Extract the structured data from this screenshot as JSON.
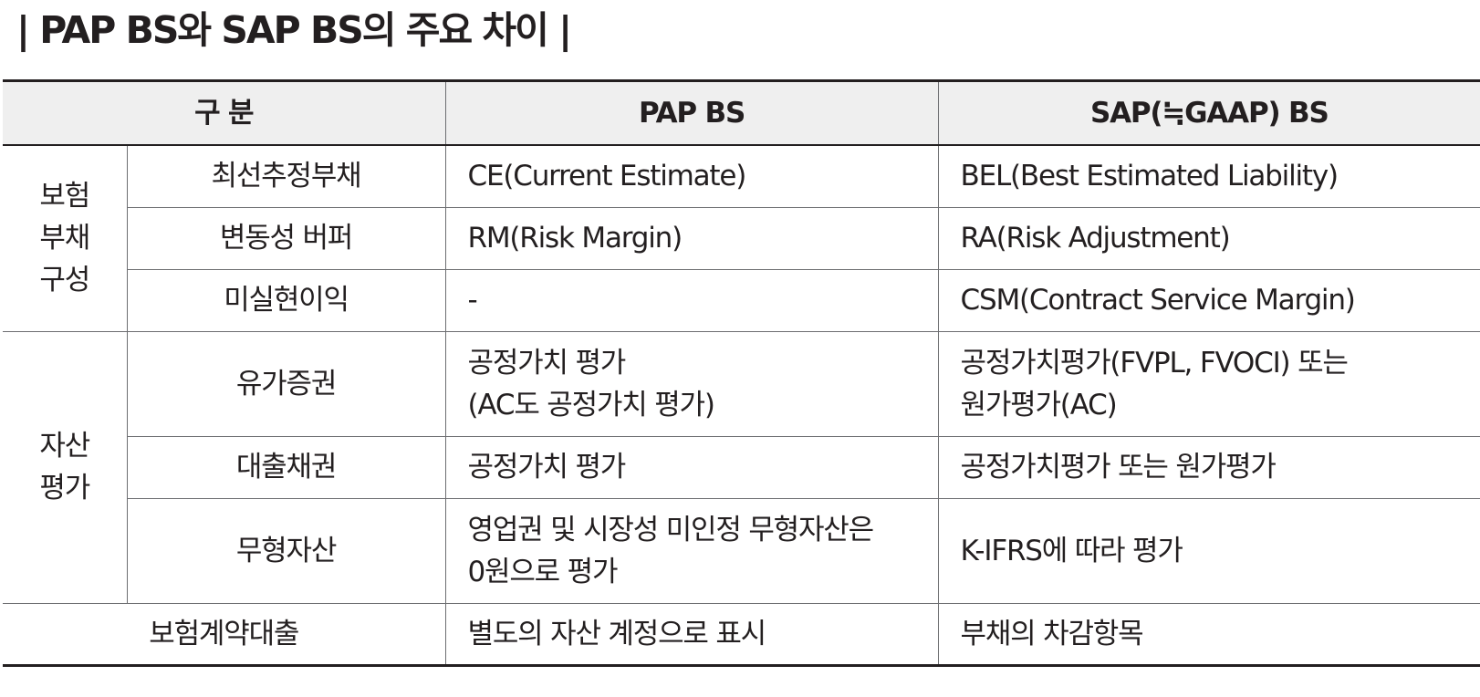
{
  "title": "| PAP BS와 SAP BS의 주요 차이 |",
  "header": {
    "category": "구 분",
    "pap": "PAP BS",
    "sap": "SAP(≒GAAP) BS"
  },
  "groups": {
    "liability": [
      "보험",
      "부채",
      "구성"
    ],
    "asset": [
      "자산",
      "평가"
    ]
  },
  "rows": [
    {
      "label": "최선추정부채",
      "pap": [
        "CE(Current Estimate)"
      ],
      "sap": [
        "BEL(Best Estimated Liability)"
      ]
    },
    {
      "label": "변동성 버퍼",
      "pap": [
        "RM(Risk Margin)"
      ],
      "sap": [
        "RA(Risk Adjustment)"
      ]
    },
    {
      "label": "미실현이익",
      "pap": [
        "-"
      ],
      "sap": [
        "CSM(Contract Service Margin)"
      ]
    },
    {
      "label": "유가증권",
      "pap": [
        "공정가치 평가",
        "(AC도 공정가치 평가)"
      ],
      "sap": [
        "공정가치평가(FVPL, FVOCI) 또는",
        "원가평가(AC)"
      ]
    },
    {
      "label": "대출채권",
      "pap": [
        "공정가치 평가"
      ],
      "sap": [
        "공정가치평가 또는 원가평가"
      ]
    },
    {
      "label": "무형자산",
      "pap": [
        "영업권 및 시장성 미인정 무형자산은",
        "0원으로 평가"
      ],
      "sap": [
        "K-IFRS에 따라 평가"
      ]
    },
    {
      "label": "보험계약대출",
      "pap": [
        "별도의 자산 계정으로 표시"
      ],
      "sap": [
        "부채의 차감항목"
      ]
    }
  ]
}
